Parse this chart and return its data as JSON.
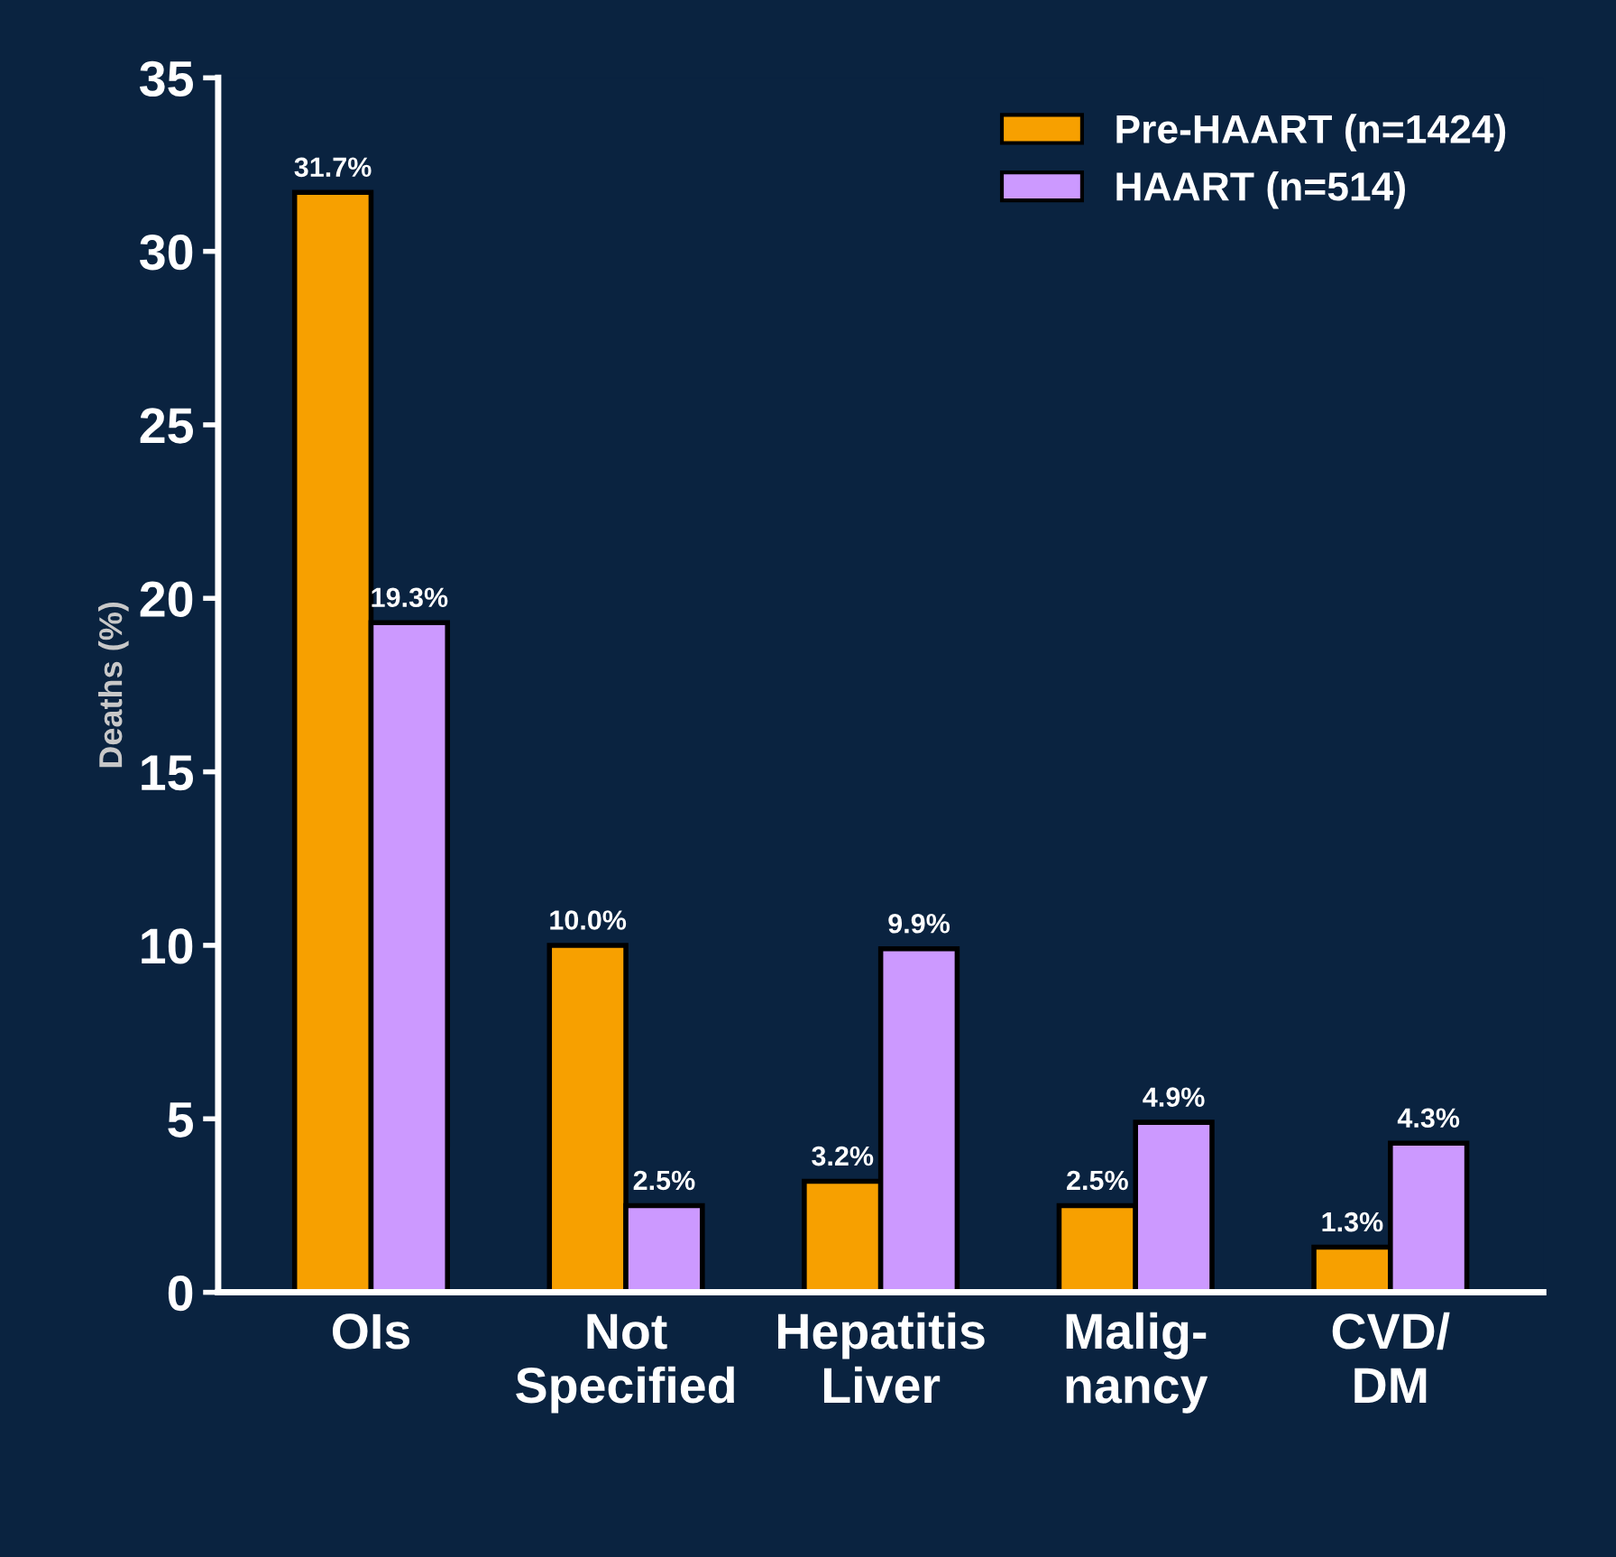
{
  "chart_data": {
    "type": "bar",
    "ylabel": "Deaths (%)",
    "categories": [
      "OIs",
      "Not\nSpecified",
      "Hepatitis\nLiver",
      "Malig-\nnancy",
      "CVD/\nDM"
    ],
    "series": [
      {
        "name": "Pre-HAART (n=1424)",
        "color": "#f7a000",
        "values": [
          31.7,
          10.0,
          3.2,
          2.5,
          1.3
        ],
        "value_labels": [
          "31.7%",
          "10.0%",
          "3.2%",
          "2.5%",
          "1.3%"
        ]
      },
      {
        "name": "HAART (n=514)",
        "color": "#cc99ff",
        "values": [
          19.3,
          2.5,
          9.9,
          4.9,
          4.3
        ],
        "value_labels": [
          "19.3%",
          "2.5%",
          "9.9%",
          "4.9%",
          "4.3%"
        ]
      }
    ],
    "ylim": [
      0,
      35
    ],
    "yticks": [
      0,
      5,
      10,
      15,
      20,
      25,
      30,
      35
    ],
    "grid": false,
    "legend": "top right"
  }
}
